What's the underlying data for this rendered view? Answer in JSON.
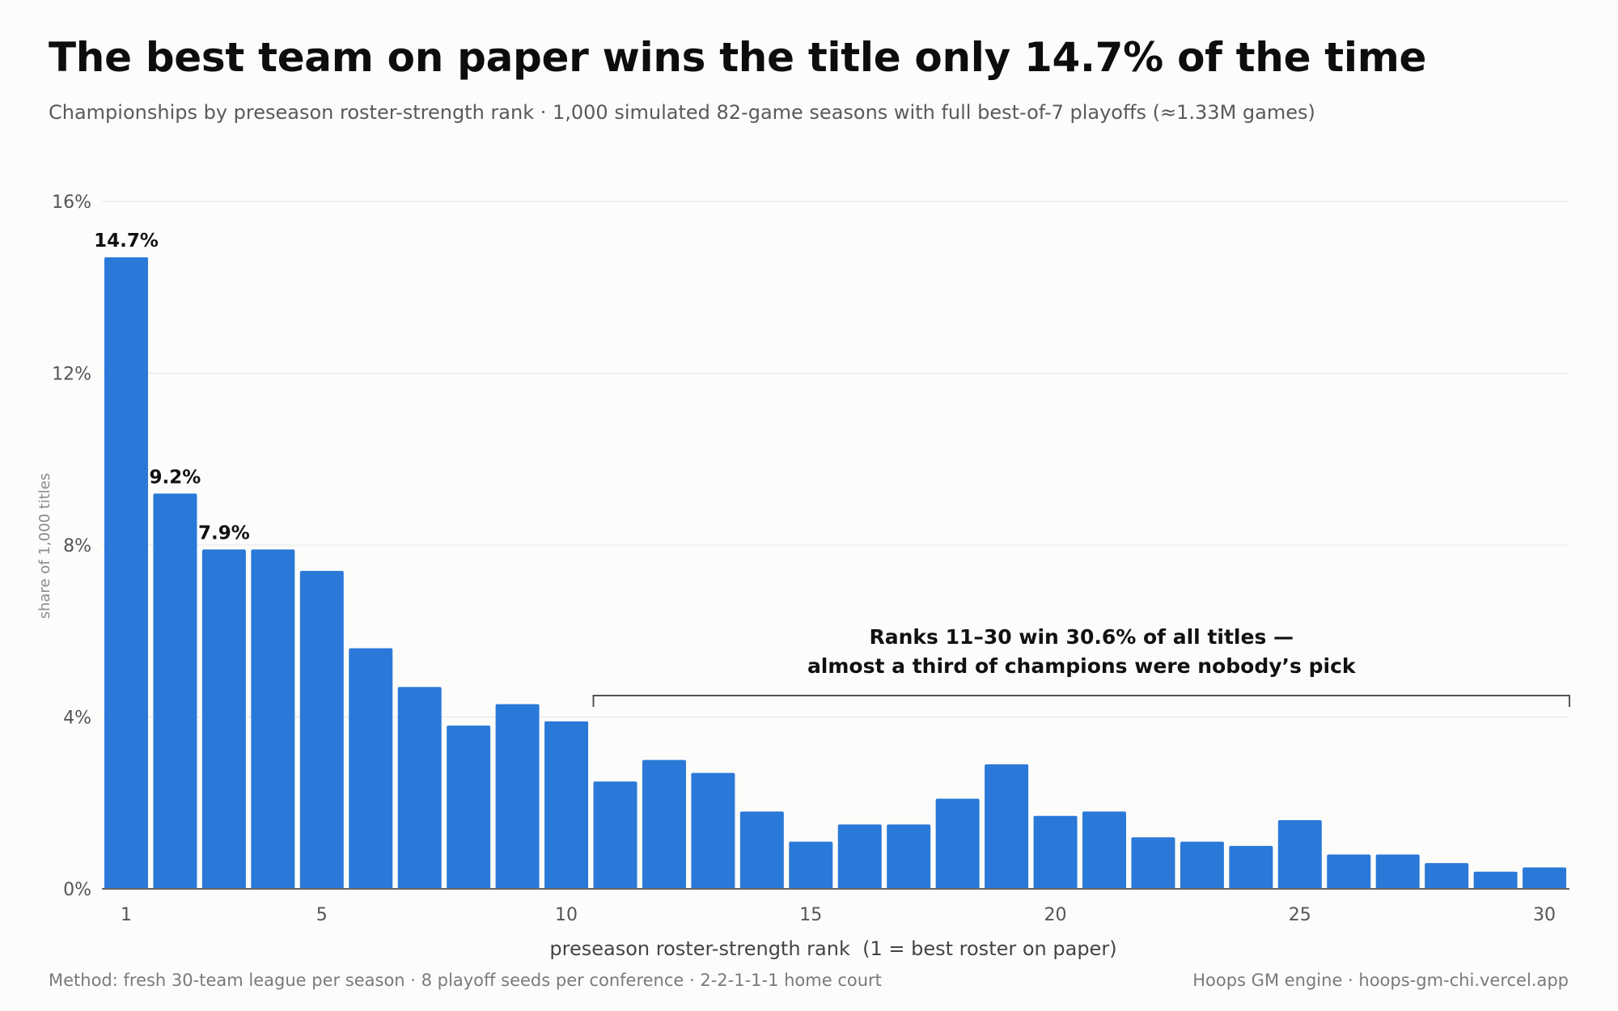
{
  "header": {
    "title": "The best team on paper wins the title only 14.7% of the time",
    "subtitle": "Championships by preseason roster-strength rank · 1,000 simulated 82-game seasons with full best-of-7 playoffs (≈1.33M games)"
  },
  "footer": {
    "method": "Method: fresh 30-team league per season · 8 playoff seeds per conference · 2-2-1-1-1 home court",
    "source": "Hoops GM engine · hoops-gm-chi.vercel.app"
  },
  "colors": {
    "bar": "#2a79d8",
    "grid": "#e6e6e6",
    "axis": "#555555",
    "bracket": "#555555"
  },
  "chart_data": {
    "type": "bar",
    "title": "The best team on paper wins the title only 14.7% of the time",
    "subtitle": "Championships by preseason roster-strength rank · 1,000 simulated 82-game seasons with full best-of-7 playoffs (≈1.33M games)",
    "xlabel": "preseason roster-strength rank  (1 = best roster on paper)",
    "ylabel": "share of 1,000 titles",
    "categories": [
      1,
      2,
      3,
      4,
      5,
      6,
      7,
      8,
      9,
      10,
      11,
      12,
      13,
      14,
      15,
      16,
      17,
      18,
      19,
      20,
      21,
      22,
      23,
      24,
      25,
      26,
      27,
      28,
      29,
      30
    ],
    "values": [
      14.7,
      9.2,
      7.9,
      7.9,
      7.4,
      5.6,
      4.7,
      3.8,
      4.3,
      3.9,
      2.5,
      3.0,
      2.7,
      1.8,
      1.1,
      1.5,
      1.5,
      2.1,
      2.9,
      1.7,
      1.8,
      1.2,
      1.1,
      1.0,
      1.6,
      0.8,
      0.8,
      0.6,
      0.4,
      0.5
    ],
    "ylim": [
      0,
      16
    ],
    "y_ticks": [
      0,
      4,
      8,
      12,
      16
    ],
    "y_tick_labels": [
      "0%",
      "4%",
      "8%",
      "12%",
      "16%"
    ],
    "x_ticks": [
      1,
      5,
      10,
      15,
      20,
      25,
      30
    ],
    "x_tick_labels": [
      "1",
      "5",
      "10",
      "15",
      "20",
      "25",
      "30"
    ],
    "grid": true,
    "data_labels": [
      {
        "rank": 1,
        "text": "14.7%"
      },
      {
        "rank": 2,
        "text": "9.2%"
      },
      {
        "rank": 3,
        "text": "7.9%"
      }
    ],
    "annotation": {
      "from_rank": 11,
      "to_rank": 30,
      "level": 4.5,
      "lines": [
        "Ranks 11–30 win 30.6% of all titles —",
        "almost a third of champions were nobody’s pick"
      ]
    }
  }
}
